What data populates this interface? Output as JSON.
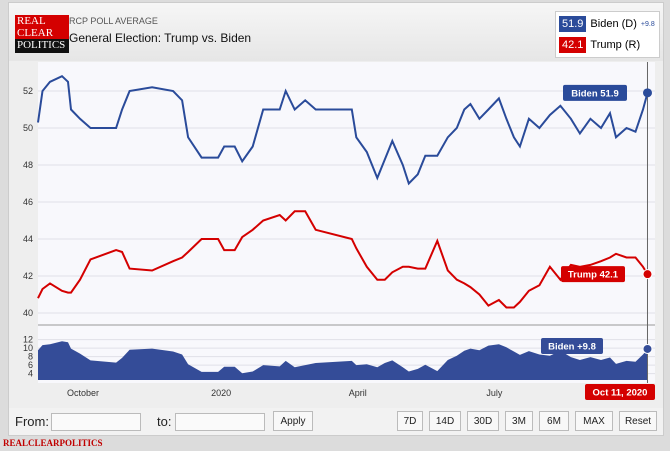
{
  "header": {
    "logo": "REAL CLEAR POLITICS",
    "subtitle": "RCP POLL AVERAGE",
    "title": "General Election: Trump vs. Biden"
  },
  "legend": {
    "biden_value": "51.9",
    "biden_label": "Biden (D)",
    "spread": "+9.8",
    "trump_value": "42.1",
    "trump_label": "Trump (R)"
  },
  "colors": {
    "biden": "#2a4b9a",
    "trump": "#d40000",
    "plot_bg": "#f8f8fc"
  },
  "chart_data": {
    "type": "line",
    "x_type": "date",
    "x_ticks": [
      {
        "date": "2019-10-01",
        "label": "October"
      },
      {
        "date": "2020-01-01",
        "label": "2020"
      },
      {
        "date": "2020-04-01",
        "label": "April"
      },
      {
        "date": "2020-07-01",
        "label": "July"
      }
    ],
    "x_range": [
      "2019-09-01",
      "2020-10-16"
    ],
    "main_y_ticks": [
      40,
      42,
      44,
      46,
      48,
      50,
      52
    ],
    "main_ylim": [
      39.7,
      53.3
    ],
    "spread_y_ticks": [
      4,
      6,
      8,
      10,
      12
    ],
    "spread_ylim": [
      2.5,
      13.5
    ],
    "grid": true,
    "dates": [
      "2019-09-01",
      "2019-09-04",
      "2019-09-09",
      "2019-09-17",
      "2019-09-21",
      "2019-09-23",
      "2019-09-29",
      "2019-10-06",
      "2019-10-23",
      "2019-10-27",
      "2019-11-01",
      "2019-11-16",
      "2019-11-30",
      "2019-12-06",
      "2019-12-10",
      "2019-12-19",
      "2019-12-30",
      "2020-01-03",
      "2020-01-10",
      "2020-01-15",
      "2020-01-22",
      "2020-01-29",
      "2020-02-09",
      "2020-02-13",
      "2020-02-19",
      "2020-02-26",
      "2020-03-04",
      "2020-03-28",
      "2020-03-31",
      "2020-04-07",
      "2020-04-14",
      "2020-04-19",
      "2020-04-24",
      "2020-05-01",
      "2020-05-05",
      "2020-05-11",
      "2020-05-16",
      "2020-05-24",
      "2020-05-31",
      "2020-06-06",
      "2020-06-11",
      "2020-06-15",
      "2020-06-21",
      "2020-06-27",
      "2020-07-04",
      "2020-07-09",
      "2020-07-14",
      "2020-07-18",
      "2020-07-24",
      "2020-07-31",
      "2020-08-07",
      "2020-08-14",
      "2020-08-21",
      "2020-08-27",
      "2020-09-03",
      "2020-09-10",
      "2020-09-16",
      "2020-09-20",
      "2020-09-27",
      "2020-10-03",
      "2020-10-08",
      "2020-10-11"
    ],
    "series": [
      {
        "name": "Biden",
        "values": [
          50.3,
          52,
          52.5,
          52.8,
          52.5,
          51,
          50.5,
          50,
          50,
          51,
          52,
          52.2,
          52,
          51.5,
          49.5,
          48.4,
          48.4,
          49,
          49,
          48.2,
          49,
          51,
          51,
          52,
          51,
          51.5,
          51,
          51,
          49.5,
          48.7,
          47.3,
          48.3,
          49.3,
          48,
          47,
          47.5,
          48.5,
          48.5,
          49.5,
          50,
          51,
          51.3,
          50.5,
          51,
          51.6,
          50.5,
          49.5,
          49,
          50.5,
          50,
          50.7,
          51.2,
          50.5,
          49.7,
          50.5,
          50,
          50.8,
          49.5,
          50,
          49.8,
          51,
          51.9
        ]
      },
      {
        "name": "Trump",
        "values": [
          40.8,
          41.3,
          41.6,
          41.2,
          41.1,
          41.1,
          41.8,
          42.9,
          43.4,
          43.3,
          42.4,
          42.3,
          42.8,
          43,
          43.3,
          44,
          44,
          43.4,
          43.4,
          44.1,
          44.5,
          45,
          45.3,
          45,
          45.5,
          45.5,
          44.5,
          44,
          43.5,
          42.5,
          41.8,
          41.8,
          42.2,
          42.5,
          42.5,
          42.4,
          42.4,
          43.9,
          42.3,
          41.8,
          41.6,
          41.4,
          41,
          40.4,
          40.7,
          40.3,
          40.3,
          40.6,
          41.2,
          41.5,
          42.5,
          41.8,
          42.6,
          42.5,
          42.6,
          42.8,
          43,
          43.2,
          43,
          43,
          42.5,
          42.1
        ]
      }
    ],
    "annotations": {
      "biden": "Biden 51.9",
      "trump": "Trump 42.1",
      "spread": "Biden +9.8",
      "date": "Oct 11, 2020"
    }
  },
  "controls": {
    "from_label": "From:",
    "to_label": "to:",
    "from_value": "",
    "to_value": "",
    "apply": "Apply",
    "ranges": [
      "7D",
      "14D",
      "30D",
      "3M",
      "6M",
      "MAX",
      "Reset"
    ]
  },
  "footer": "REALCLEARPOLITICS"
}
